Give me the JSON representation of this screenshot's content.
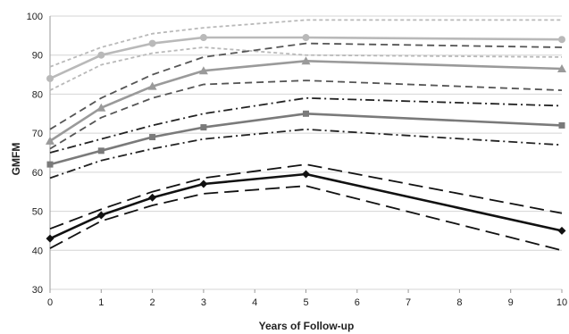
{
  "chart_data": {
    "type": "line",
    "xlabel": "Years of Follow-up",
    "ylabel": "GMFM",
    "xlim": [
      0,
      10
    ],
    "ylim": [
      30,
      100
    ],
    "x_ticks": [
      0,
      1,
      2,
      3,
      4,
      5,
      6,
      7,
      8,
      9,
      10
    ],
    "y_ticks": [
      30,
      40,
      50,
      60,
      70,
      80,
      90,
      100
    ],
    "grid": "horizontal",
    "legend": "none",
    "series": [
      {
        "style": "solid",
        "color": "#b9b9b9",
        "marker": "circle",
        "x": [
          0,
          1,
          2,
          3,
          5,
          10
        ],
        "values": [
          84,
          90,
          93,
          94.5,
          94.5,
          94
        ]
      },
      {
        "style": "short-dash",
        "color": "#b9b9b9",
        "marker": "none",
        "x": [
          0,
          1,
          2,
          3,
          5,
          10
        ],
        "values": [
          87,
          92,
          95.5,
          97,
          99,
          99
        ]
      },
      {
        "style": "short-dash",
        "color": "#b9b9b9",
        "marker": "none",
        "x": [
          0,
          1,
          2,
          3,
          5,
          10
        ],
        "values": [
          81,
          87.5,
          90.5,
          92,
          90,
          89.5
        ]
      },
      {
        "style": "solid",
        "color": "#9a9a9a",
        "marker": "triangle",
        "x": [
          0,
          1,
          2,
          3,
          5,
          10
        ],
        "values": [
          68,
          76.5,
          82,
          86,
          88.5,
          86.5
        ]
      },
      {
        "style": "dash",
        "color": "#555555",
        "marker": "none",
        "x": [
          0,
          1,
          2,
          3,
          5,
          10
        ],
        "values": [
          71,
          79,
          85,
          89.5,
          93,
          92
        ]
      },
      {
        "style": "dash",
        "color": "#555555",
        "marker": "none",
        "x": [
          0,
          1,
          2,
          3,
          5,
          10
        ],
        "values": [
          66,
          74,
          79,
          82.5,
          83.5,
          81
        ]
      },
      {
        "style": "solid",
        "color": "#7a7a7a",
        "marker": "square",
        "x": [
          0,
          1,
          2,
          3,
          5,
          10
        ],
        "values": [
          62,
          65.5,
          69,
          71.5,
          75,
          72
        ]
      },
      {
        "style": "dash-dot",
        "color": "#222222",
        "marker": "none",
        "x": [
          0,
          1,
          2,
          3,
          5,
          10
        ],
        "values": [
          65,
          68.5,
          72,
          75,
          79,
          77
        ]
      },
      {
        "style": "dash-dot",
        "color": "#222222",
        "marker": "none",
        "x": [
          0,
          1,
          2,
          3,
          5,
          10
        ],
        "values": [
          58.5,
          63,
          66,
          68.5,
          71,
          67
        ]
      },
      {
        "style": "solid",
        "color": "#111111",
        "marker": "diamond",
        "x": [
          0,
          1,
          2,
          3,
          5,
          10
        ],
        "values": [
          43,
          49,
          53.5,
          57,
          59.5,
          45
        ]
      },
      {
        "style": "long-dash",
        "color": "#111111",
        "marker": "none",
        "x": [
          0,
          1,
          2,
          3,
          5,
          10
        ],
        "values": [
          45.5,
          50.5,
          55,
          58.5,
          62,
          49.5
        ]
      },
      {
        "style": "long-dash",
        "color": "#111111",
        "marker": "none",
        "x": [
          0,
          1,
          2,
          3,
          5,
          10
        ],
        "values": [
          40.5,
          47.5,
          51.5,
          54.5,
          56.5,
          40
        ]
      }
    ]
  }
}
